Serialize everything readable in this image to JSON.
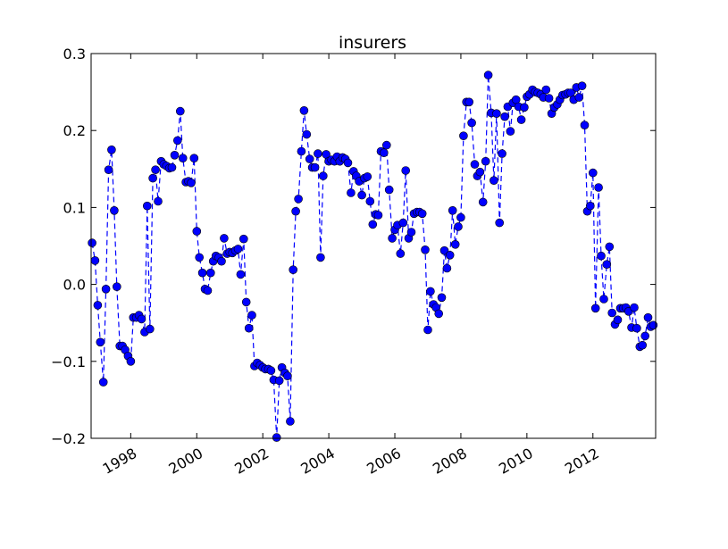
{
  "chart_data": {
    "type": "line",
    "title": "insurers",
    "xlabel": "",
    "ylabel": "",
    "xlim": [
      1996.8,
      2013.9
    ],
    "ylim": [
      -0.2,
      0.3
    ],
    "y_ticks": [
      -0.2,
      -0.1,
      0.0,
      0.1,
      0.2,
      0.3
    ],
    "y_tick_labels": [
      "−0.2",
      "−0.1",
      "0.0",
      "0.1",
      "0.2",
      "0.3"
    ],
    "x_ticks": [
      1998,
      2000,
      2002,
      2004,
      2006,
      2008,
      2010,
      2012
    ],
    "x_tick_labels": [
      "1998",
      "2000",
      "2002",
      "2004",
      "2006",
      "2008",
      "2010",
      "2012"
    ],
    "grid": false,
    "legend": "none",
    "colors": {
      "series": "#0000ff",
      "axes": "#000000",
      "background": "#ffffff"
    },
    "series": [
      {
        "marker": "circle",
        "linestyle": "dashed",
        "color": "#0000ff",
        "x": [
          1996.83,
          1996.92,
          1997.0,
          1997.08,
          1997.17,
          1997.25,
          1997.33,
          1997.42,
          1997.5,
          1997.58,
          1997.67,
          1997.75,
          1997.83,
          1997.92,
          1998.0,
          1998.08,
          1998.17,
          1998.25,
          1998.33,
          1998.42,
          1998.5,
          1998.58,
          1998.67,
          1998.75,
          1998.83,
          1998.92,
          1999.0,
          1999.08,
          1999.17,
          1999.25,
          1999.33,
          1999.42,
          1999.5,
          1999.58,
          1999.67,
          1999.75,
          1999.83,
          1999.92,
          2000.0,
          2000.08,
          2000.17,
          2000.25,
          2000.33,
          2000.42,
          2000.5,
          2000.58,
          2000.67,
          2000.75,
          2000.83,
          2000.92,
          2001.0,
          2001.08,
          2001.17,
          2001.25,
          2001.33,
          2001.42,
          2001.5,
          2001.58,
          2001.67,
          2001.75,
          2001.83,
          2001.92,
          2002.0,
          2002.08,
          2002.17,
          2002.25,
          2002.33,
          2002.42,
          2002.5,
          2002.58,
          2002.67,
          2002.75,
          2002.83,
          2002.92,
          2003.0,
          2003.08,
          2003.17,
          2003.25,
          2003.33,
          2003.42,
          2003.5,
          2003.58,
          2003.67,
          2003.75,
          2003.83,
          2003.92,
          2004.0,
          2004.08,
          2004.17,
          2004.25,
          2004.33,
          2004.42,
          2004.5,
          2004.58,
          2004.67,
          2004.75,
          2004.83,
          2004.92,
          2005.0,
          2005.08,
          2005.17,
          2005.25,
          2005.33,
          2005.42,
          2005.5,
          2005.58,
          2005.67,
          2005.75,
          2005.83,
          2005.92,
          2006.0,
          2006.08,
          2006.17,
          2006.25,
          2006.33,
          2006.42,
          2006.5,
          2006.58,
          2006.67,
          2006.75,
          2006.83,
          2006.92,
          2007.0,
          2007.08,
          2007.17,
          2007.25,
          2007.33,
          2007.42,
          2007.5,
          2007.58,
          2007.67,
          2007.75,
          2007.83,
          2007.92,
          2008.0,
          2008.08,
          2008.17,
          2008.25,
          2008.33,
          2008.42,
          2008.5,
          2008.58,
          2008.67,
          2008.75,
          2008.83,
          2008.92,
          2009.0,
          2009.08,
          2009.17,
          2009.25,
          2009.33,
          2009.42,
          2009.5,
          2009.58,
          2009.67,
          2009.75,
          2009.83,
          2009.92,
          2010.0,
          2010.08,
          2010.17,
          2010.25,
          2010.33,
          2010.42,
          2010.5,
          2010.58,
          2010.67,
          2010.75,
          2010.83,
          2010.92,
          2011.0,
          2011.08,
          2011.17,
          2011.25,
          2011.33,
          2011.42,
          2011.5,
          2011.58,
          2011.67,
          2011.75,
          2011.83,
          2011.92,
          2012.0,
          2012.08,
          2012.17,
          2012.25,
          2012.33,
          2012.42,
          2012.5,
          2012.58,
          2012.67,
          2012.75,
          2012.83,
          2012.92,
          2013.0,
          2013.08,
          2013.17,
          2013.25,
          2013.33,
          2013.42,
          2013.5,
          2013.58,
          2013.67,
          2013.75,
          2013.83
        ],
        "y": [
          0.054,
          0.031,
          -0.027,
          -0.075,
          -0.127,
          -0.006,
          0.149,
          0.175,
          0.096,
          -0.003,
          -0.08,
          -0.08,
          -0.085,
          -0.093,
          -0.1,
          -0.043,
          -0.043,
          -0.04,
          -0.045,
          -0.062,
          0.102,
          -0.058,
          0.138,
          0.149,
          0.108,
          0.16,
          0.156,
          0.154,
          0.151,
          0.152,
          0.168,
          0.187,
          0.225,
          0.164,
          0.133,
          0.134,
          0.132,
          0.164,
          0.069,
          0.035,
          0.015,
          -0.006,
          -0.008,
          0.015,
          0.03,
          0.037,
          0.035,
          0.03,
          0.06,
          0.04,
          0.042,
          0.041,
          0.044,
          0.046,
          0.013,
          0.059,
          -0.023,
          -0.057,
          -0.04,
          -0.106,
          -0.102,
          -0.105,
          -0.108,
          -0.11,
          -0.11,
          -0.112,
          -0.124,
          -0.199,
          -0.125,
          -0.108,
          -0.115,
          -0.119,
          -0.178,
          0.019,
          0.095,
          0.111,
          0.173,
          0.226,
          0.195,
          0.163,
          0.152,
          0.152,
          0.17,
          0.035,
          0.141,
          0.169,
          0.16,
          0.162,
          0.16,
          0.166,
          0.16,
          0.165,
          0.163,
          0.158,
          0.119,
          0.147,
          0.141,
          0.134,
          0.116,
          0.138,
          0.14,
          0.108,
          0.078,
          0.091,
          0.09,
          0.173,
          0.171,
          0.181,
          0.123,
          0.06,
          0.071,
          0.077,
          0.04,
          0.08,
          0.148,
          0.06,
          0.068,
          0.092,
          0.094,
          0.094,
          0.092,
          0.045,
          -0.059,
          -0.009,
          -0.026,
          -0.03,
          -0.038,
          -0.017,
          0.044,
          0.021,
          0.038,
          0.096,
          0.052,
          0.075,
          0.087,
          0.193,
          0.237,
          0.237,
          0.21,
          0.156,
          0.141,
          0.146,
          0.107,
          0.16,
          0.272,
          0.223,
          0.135,
          0.222,
          0.08,
          0.17,
          0.218,
          0.231,
          0.199,
          0.236,
          0.24,
          0.231,
          0.214,
          0.23,
          0.244,
          0.247,
          0.253,
          0.25,
          0.249,
          0.247,
          0.243,
          0.253,
          0.242,
          0.222,
          0.23,
          0.234,
          0.24,
          0.246,
          0.247,
          0.249,
          0.249,
          0.24,
          0.256,
          0.243,
          0.258,
          0.207,
          0.095,
          0.102,
          0.145,
          -0.031,
          0.126,
          0.037,
          -0.019,
          0.026,
          0.049,
          -0.037,
          -0.052,
          -0.046,
          -0.031,
          -0.031,
          -0.03,
          -0.035,
          -0.056,
          -0.03,
          -0.057,
          -0.081,
          -0.079,
          -0.067,
          -0.043,
          -0.055,
          -0.053
        ]
      }
    ]
  }
}
